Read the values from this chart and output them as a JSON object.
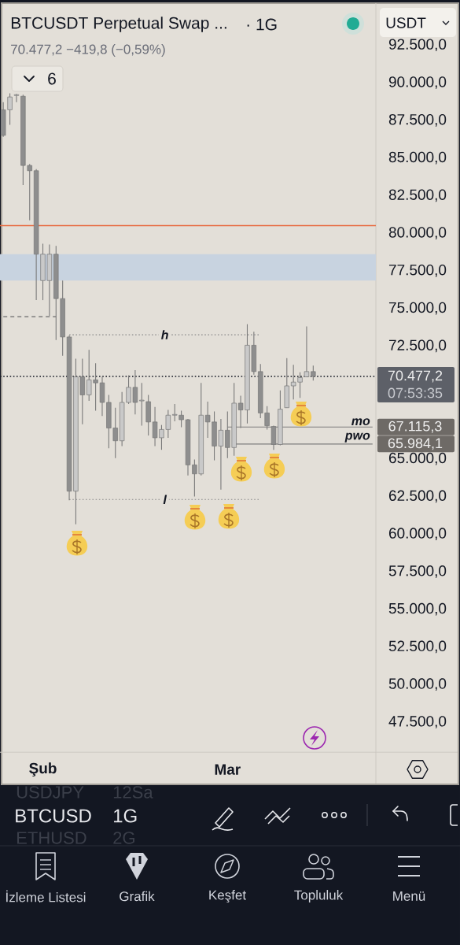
{
  "chart_data": {
    "type": "candlestick",
    "title": "BTCUSDT Perpetual Swap ...",
    "subtitle": "70.477,2 −419,8 (−0,59%)",
    "categories": [
      null,
      null,
      null,
      null,
      null,
      null,
      "Şub",
      null,
      null,
      null,
      null,
      null,
      null,
      null,
      null,
      null,
      null,
      null,
      null,
      null,
      null,
      null,
      null,
      null,
      null,
      null,
      null,
      null,
      null,
      null,
      null,
      null,
      null,
      null,
      "Mar",
      null,
      null,
      null,
      null,
      null,
      null,
      null,
      null,
      null,
      null,
      null,
      null,
      null,
      null,
      null,
      null,
      null,
      null,
      null,
      null,
      null,
      null
    ],
    "ohlc": [
      [
        88200,
        88700,
        86400,
        86500
      ],
      [
        88200,
        89300,
        87200,
        89050
      ],
      [
        89150,
        89250,
        88700,
        89200
      ],
      [
        89100,
        89200,
        83200,
        84500
      ],
      [
        84500,
        84600,
        80850,
        84150
      ],
      [
        84150,
        84250,
        75550,
        78600
      ],
      [
        76850,
        79300,
        75550,
        78600
      ],
      [
        76850,
        79250,
        74500,
        78600
      ],
      [
        78600,
        79150,
        72900,
        75650
      ],
      [
        75650,
        76850,
        71850,
        73100
      ],
      [
        73100,
        73200,
        62250,
        62850
      ],
      [
        62850,
        71650,
        60650,
        70450
      ],
      [
        70450,
        71650,
        67300,
        69250
      ],
      [
        69250,
        72250,
        68850,
        70250
      ],
      [
        70250,
        71350,
        68200,
        70050
      ],
      [
        70050,
        70450,
        67850,
        68750
      ],
      [
        68750,
        69250,
        65700,
        67050
      ],
      [
        67050,
        68400,
        65050,
        66200
      ],
      [
        66200,
        69450,
        65850,
        68750
      ],
      [
        68750,
        70550,
        68650,
        69750
      ],
      [
        69750,
        70900,
        67950,
        68750
      ],
      [
        68850,
        70050,
        67200,
        68900
      ],
      [
        68800,
        69250,
        66550,
        67450
      ],
      [
        67450,
        68450,
        65850,
        66400
      ],
      [
        66400,
        67250,
        65600,
        66950
      ],
      [
        66950,
        68250,
        66400,
        67900
      ],
      [
        67900,
        68650,
        67500,
        67950
      ],
      [
        67900,
        68200,
        67100,
        67600
      ],
      [
        67600,
        67650,
        63900,
        64600
      ],
      [
        64600,
        64950,
        62500,
        64000
      ],
      [
        64000,
        70050,
        63900,
        67900
      ],
      [
        67900,
        68800,
        66400,
        67450
      ],
      [
        67450,
        68150,
        64900,
        65850
      ],
      [
        65850,
        67650,
        62950,
        66900
      ],
      [
        66900,
        68150,
        65050,
        65750
      ],
      [
        65750,
        70050,
        65200,
        68700
      ],
      [
        68700,
        69200,
        67050,
        68250
      ],
      [
        68250,
        73950,
        67350,
        72550
      ],
      [
        72550,
        73450,
        70600,
        70800
      ],
      [
        70800,
        71300,
        67700,
        68050
      ],
      [
        68050,
        68500,
        66950,
        67200
      ],
      [
        67150,
        67200,
        65600,
        65950
      ],
      [
        65950,
        69550,
        65900,
        68300
      ],
      [
        68400,
        71700,
        68400,
        69850
      ],
      [
        69850,
        71250,
        68950,
        70100
      ],
      [
        70100,
        70750,
        69050,
        70400
      ],
      [
        70450,
        73800,
        70450,
        70800
      ],
      [
        70800,
        71200,
        70200,
        70477.2
      ],
      null,
      null,
      null,
      null,
      null,
      null,
      null,
      null,
      null
    ],
    "colors": [
      "#8e8e8e",
      "#c9c9c9",
      "#c9c9c9",
      "#8e8e8e",
      "#8e8e8e",
      "#8e8e8e",
      "#c9c9c9",
      "#c9c9c9",
      "#8e8e8e",
      "#8e8e8e",
      "#8e8e8e",
      "#c9c9c9",
      "#8e8e8e",
      "#c9c9c9",
      "#8e8e8e",
      "#8e8e8e",
      "#8e8e8e",
      "#8e8e8e",
      "#c9c9c9",
      "#c9c9c9",
      "#8e8e8e",
      "#c9c9c9",
      "#8e8e8e",
      "#8e8e8e",
      "#c9c9c9",
      "#c9c9c9",
      "#c9c9c9",
      "#8e8e8e",
      "#8e8e8e",
      "#8e8e8e",
      "#c9c9c9",
      "#8e8e8e",
      "#8e8e8e",
      "#c9c9c9",
      "#8e8e8e",
      "#c9c9c9",
      "#8e8e8e",
      "#c9c9c9",
      "#8e8e8e",
      "#8e8e8e",
      "#8e8e8e",
      "#8e8e8e",
      "#c9c9c9",
      "#c9c9c9",
      "#c9c9c9",
      "#c9c9c9",
      "#c9c9c9",
      "#8e8e8e",
      null,
      null,
      null,
      null,
      null,
      null,
      null,
      null,
      null
    ],
    "series": [
      {
        "type": "line",
        "values": [
          74450,
          74450,
          74450,
          74450,
          74450,
          74450,
          74450,
          74450,
          74450,
          null,
          null,
          null,
          null,
          null,
          null,
          null,
          null,
          null,
          null,
          null,
          null,
          null,
          null,
          null,
          null,
          null,
          null,
          null,
          null,
          null,
          null,
          null,
          null,
          null,
          null,
          null,
          null,
          null,
          null,
          null,
          null,
          null,
          null,
          null,
          null,
          null,
          null,
          null,
          null,
          null,
          null,
          null,
          null,
          null,
          null,
          null,
          null
        ],
        "color": "#6b6b6b",
        "line_style": "dashed"
      },
      {
        "type": "line",
        "name": "h",
        "values": [
          null,
          null,
          null,
          null,
          null,
          null,
          null,
          null,
          null,
          null,
          73250,
          73250,
          73250,
          73250,
          73250,
          73250,
          73250,
          73250,
          73250,
          73250,
          73250,
          73250,
          73250,
          73250,
          73250,
          73250,
          73250,
          73250,
          73250,
          73250,
          73250,
          73250,
          73250,
          73250,
          73250,
          73250,
          73250,
          73250,
          73250,
          73250,
          null,
          null,
          null,
          null,
          null,
          null,
          null,
          null,
          null,
          null,
          null,
          null,
          null,
          null,
          null,
          null,
          null
        ],
        "color": "#8a8a8a",
        "line_style": "dotted"
      },
      {
        "type": "line",
        "name": "l",
        "values": [
          null,
          null,
          null,
          null,
          null,
          null,
          null,
          null,
          null,
          null,
          62300,
          62300,
          62300,
          62300,
          62300,
          62300,
          62300,
          62300,
          62300,
          62300,
          62300,
          62300,
          62300,
          62300,
          62300,
          62300,
          62300,
          62300,
          62300,
          62300,
          62300,
          62300,
          62300,
          62300,
          62300,
          62300,
          62300,
          62300,
          62300,
          62300,
          null,
          null,
          null,
          null,
          null,
          null,
          null,
          null,
          null,
          null,
          null,
          null,
          null,
          null,
          null,
          null,
          null
        ],
        "color": "#8a8a8a",
        "line_style": "dotted"
      },
      {
        "type": "line",
        "name": "mo",
        "values": [
          null,
          null,
          null,
          null,
          null,
          null,
          null,
          null,
          null,
          null,
          null,
          null,
          null,
          null,
          null,
          null,
          null,
          null,
          null,
          null,
          null,
          null,
          null,
          null,
          null,
          null,
          null,
          null,
          null,
          null,
          null,
          null,
          null,
          null,
          67115.3,
          67115.3,
          67115.3,
          67115.3,
          67115.3,
          67115.3,
          67115.3,
          67115.3,
          67115.3,
          67115.3,
          67115.3,
          67115.3,
          67115.3,
          67115.3,
          67115.3,
          67115.3,
          67115.3,
          67115.3,
          67115.3,
          67115.3,
          67115.3,
          67115.3,
          67115.3
        ],
        "color": "#7d7d7d",
        "value_labels": [
          null,
          null,
          null,
          null,
          null,
          null,
          null,
          null,
          null,
          null,
          null,
          null,
          null,
          null,
          null,
          null,
          null,
          null,
          null,
          null,
          null,
          null,
          null,
          null,
          null,
          null,
          null,
          null,
          null,
          null,
          null,
          null,
          null,
          null,
          null,
          null,
          null,
          null,
          null,
          null,
          null,
          null,
          null,
          null,
          null,
          null,
          null,
          null,
          null,
          null,
          null,
          null,
          null,
          null,
          null,
          null,
          "67.115,3"
        ]
      },
      {
        "type": "line",
        "name": "pwo",
        "values": [
          null,
          null,
          null,
          null,
          null,
          null,
          null,
          null,
          null,
          null,
          null,
          null,
          null,
          null,
          null,
          null,
          null,
          null,
          null,
          null,
          null,
          null,
          null,
          null,
          null,
          null,
          null,
          null,
          null,
          null,
          null,
          null,
          null,
          null,
          null,
          65984.1,
          65984.1,
          65984.1,
          65984.1,
          65984.1,
          65984.1,
          65984.1,
          65984.1,
          65984.1,
          65984.1,
          65984.1,
          65984.1,
          65984.1,
          65984.1,
          65984.1,
          65984.1,
          65984.1,
          65984.1,
          65984.1,
          65984.1,
          65984.1,
          65984.1
        ],
        "color": "#7d7d7d",
        "value_labels": [
          null,
          null,
          null,
          null,
          null,
          null,
          null,
          null,
          null,
          null,
          null,
          null,
          null,
          null,
          null,
          null,
          null,
          null,
          null,
          null,
          null,
          null,
          null,
          null,
          null,
          null,
          null,
          null,
          null,
          null,
          null,
          null,
          null,
          null,
          null,
          null,
          null,
          null,
          null,
          null,
          null,
          null,
          null,
          null,
          null,
          null,
          null,
          null,
          null,
          null,
          null,
          null,
          null,
          null,
          null,
          null,
          "65.984,1"
        ]
      }
    ],
    "ylim": [
      45500,
      95000
    ],
    "yticks": [
      {
        "value": 47500,
        "label": "47.500,0"
      },
      {
        "value": 50000,
        "label": "50.000,0"
      },
      {
        "value": 52500,
        "label": "52.500,0"
      },
      {
        "value": 55000,
        "label": "55.000,0"
      },
      {
        "value": 57500,
        "label": "57.500,0"
      },
      {
        "value": 60000,
        "label": "60.000,0"
      },
      {
        "value": 62500,
        "label": "62.500,0"
      },
      {
        "value": 65000,
        "label": "65.000,0"
      },
      {
        "value": 72500,
        "label": "72.500,0"
      },
      {
        "value": 75000,
        "label": "75.000,0"
      },
      {
        "value": 77500,
        "label": "77.500,0"
      },
      {
        "value": 80000,
        "label": "80.000,0"
      },
      {
        "value": 82500,
        "label": "82.500,0"
      },
      {
        "value": 85000,
        "label": "85.000,0"
      },
      {
        "value": 87500,
        "label": "87.500,0"
      },
      {
        "value": 90000,
        "label": "90.000,0"
      },
      {
        "value": 92500,
        "label": "92.500,0"
      }
    ],
    "ref_lines": [
      {
        "axis": "y",
        "value": 80500,
        "color": "#e8693f"
      },
      {
        "axis": "y",
        "value": 70477.2,
        "label": "70.477,2",
        "color": "#131722",
        "line_style": "dotted"
      }
    ],
    "bands": [
      {
        "axis": "y",
        "from": 76850,
        "to": 78600,
        "color": "#c8d3e0"
      }
    ],
    "annotations": [
      "· 1G",
      "USDT",
      "6",
      "07:53:35",
      "USDJPY",
      "12Sa",
      "BTCUSD",
      "1G",
      "ETHUSD",
      "2G",
      "İzleme Listesi",
      "Grafik",
      "Keşfet",
      "Topluluk",
      "Menü"
    ]
  }
}
